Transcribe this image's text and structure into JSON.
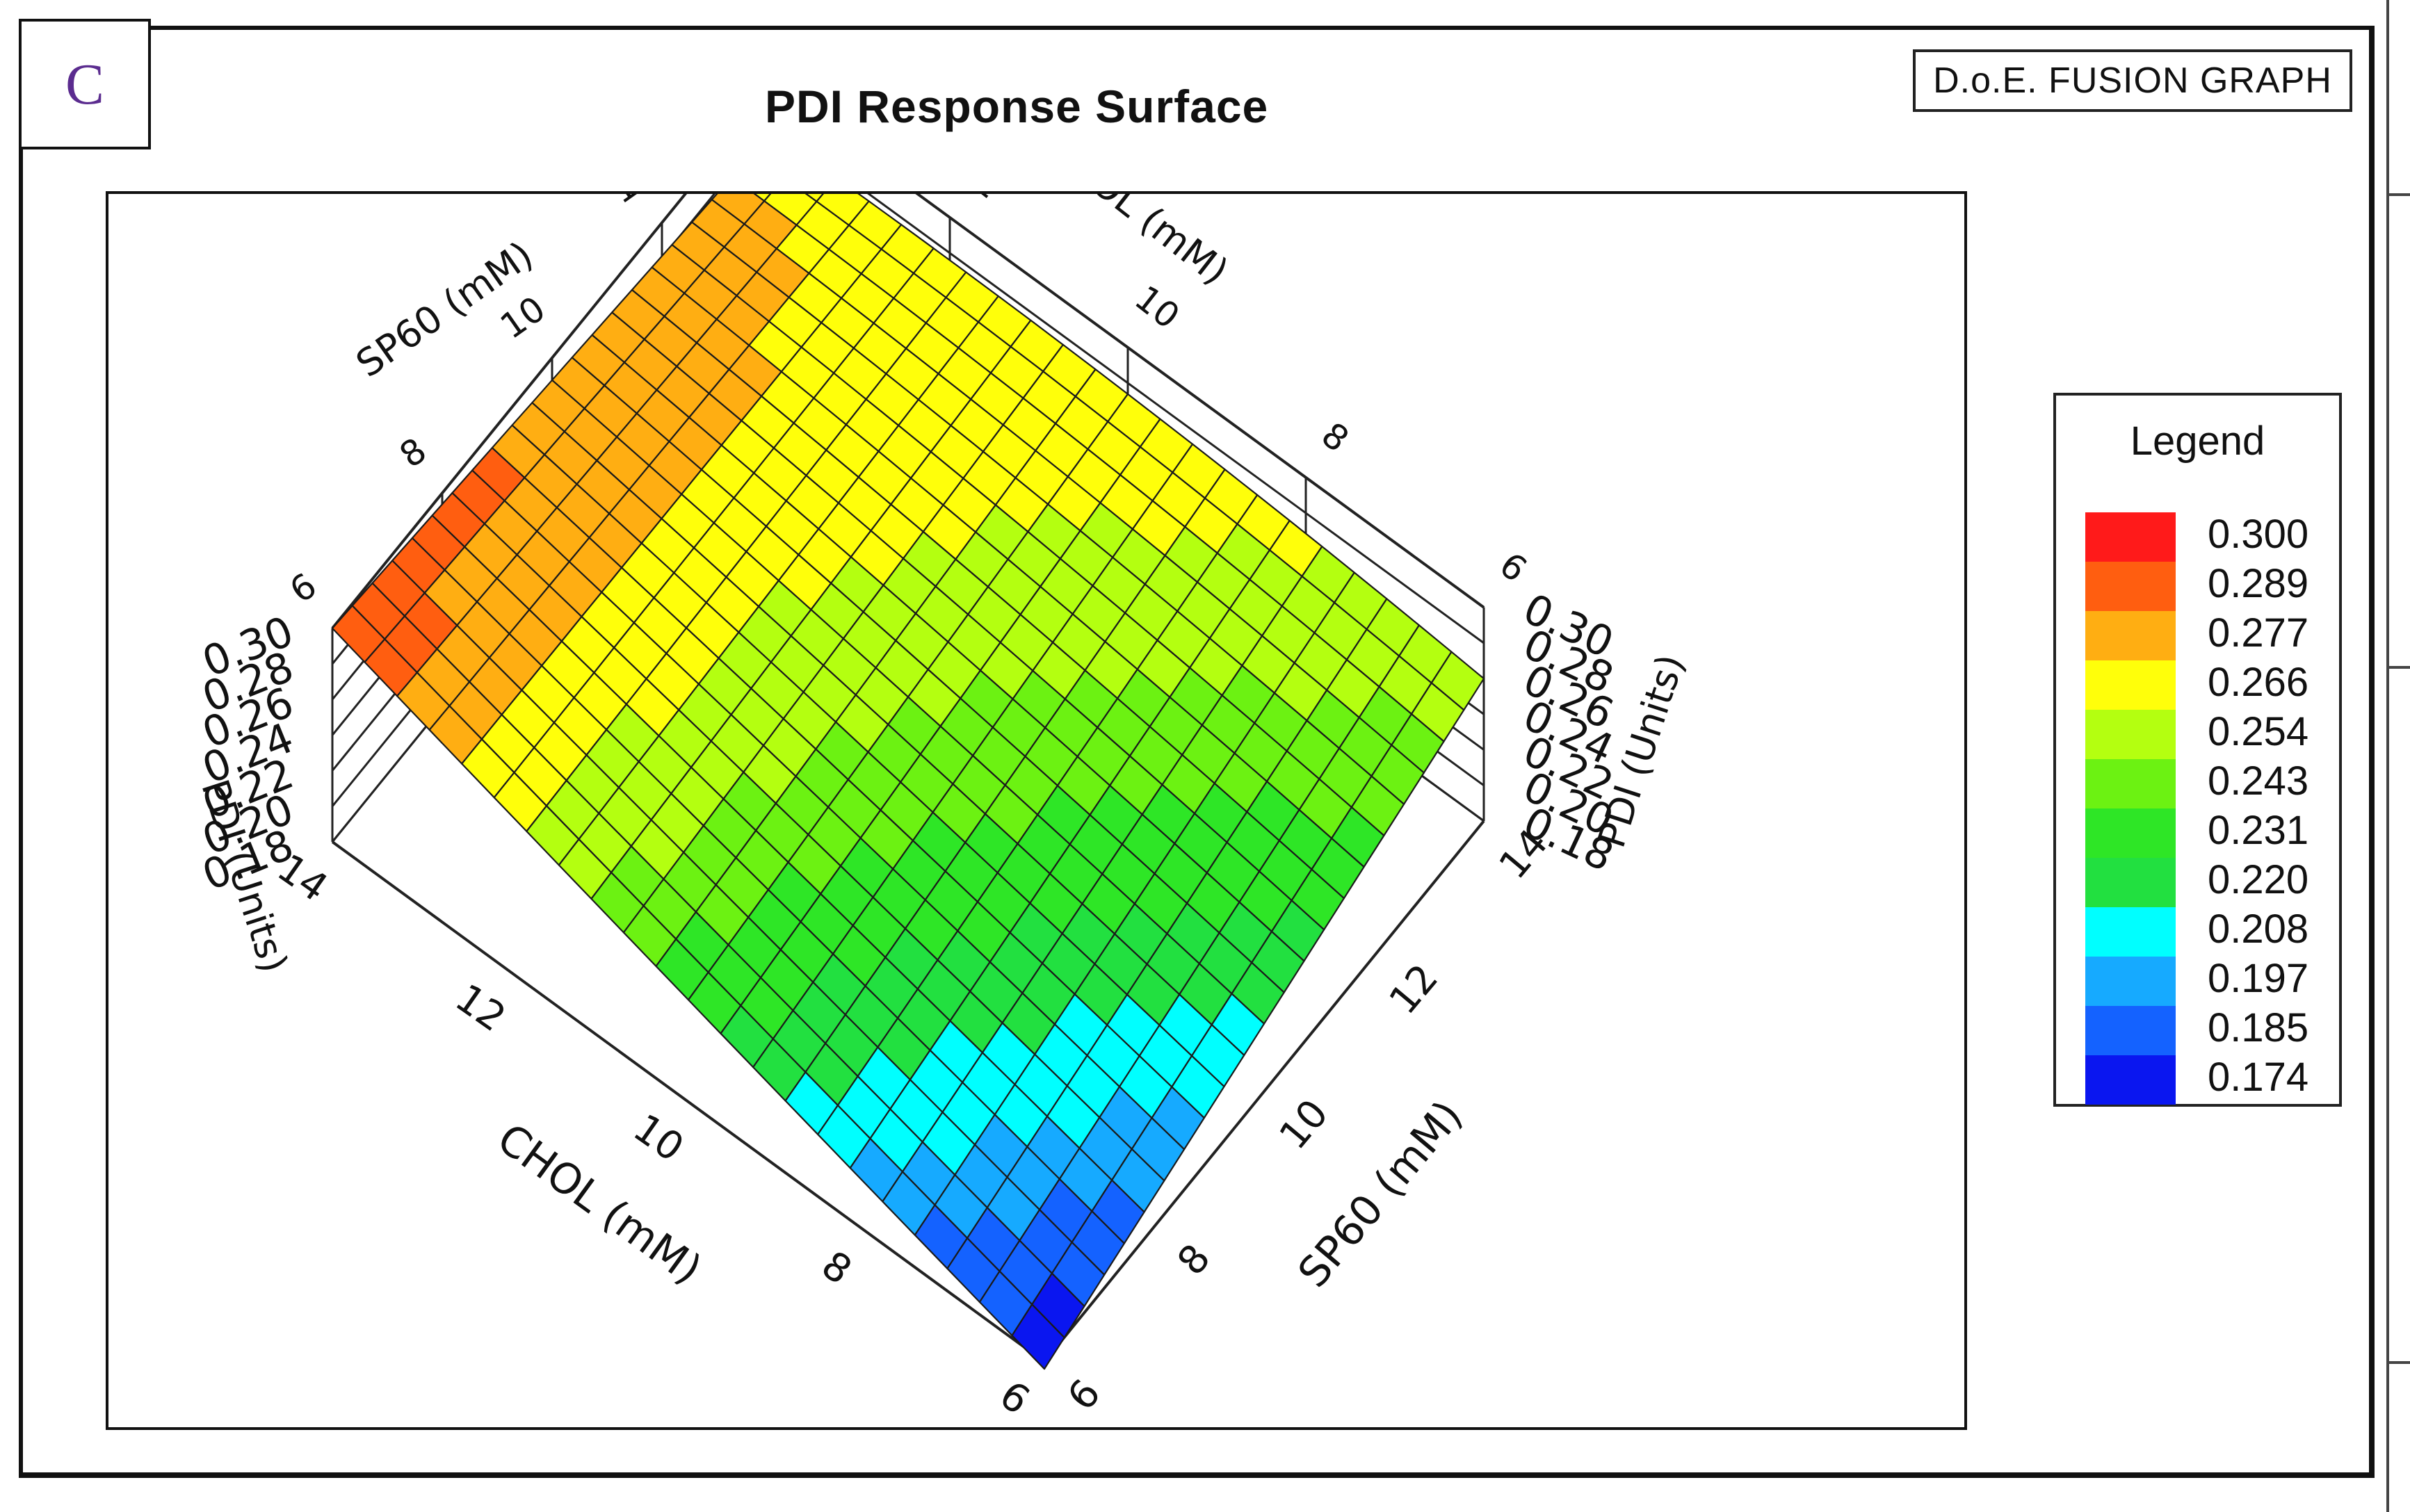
{
  "panel_label": "C",
  "brand_label": "D.o.E. FUSION GRAPH",
  "legend": {
    "title": "Legend",
    "entries": [
      {
        "label": "0.300",
        "color": "#ff1a1a"
      },
      {
        "label": "0.289",
        "color": "#ff5e10"
      },
      {
        "label": "0.277",
        "color": "#ffae12"
      },
      {
        "label": "0.266",
        "color": "#ffff0a"
      },
      {
        "label": "0.254",
        "color": "#b4ff10"
      },
      {
        "label": "0.243",
        "color": "#6cf212"
      },
      {
        "label": "0.231",
        "color": "#2ee626"
      },
      {
        "label": "0.220",
        "color": "#22e040"
      },
      {
        "label": "0.208",
        "color": "#00ffff"
      },
      {
        "label": "0.197",
        "color": "#16aaff"
      },
      {
        "label": "0.185",
        "color": "#1462ff"
      },
      {
        "label": "0.174",
        "color": "#0a16f0"
      }
    ]
  },
  "chart_data": {
    "type": "surface3d",
    "title": "PDI Response Surface",
    "x": {
      "label": "CHOL (mM)",
      "ticks": [
        "6",
        "8",
        "10",
        "12",
        "14"
      ],
      "range": [
        6,
        14
      ]
    },
    "y": {
      "label": "SP60 (mM)",
      "ticks": [
        "6",
        "8",
        "10",
        "12",
        "14"
      ],
      "range": [
        6,
        14
      ]
    },
    "z": {
      "label": "PDI (Units)",
      "ticks": [
        "0.18",
        "0.20",
        "0.22",
        "0.24",
        "0.26",
        "0.28",
        "0.30"
      ],
      "range": [
        0.18,
        0.3
      ]
    },
    "corner_values": [
      {
        "CHOL": 6,
        "SP60": 6,
        "PDI": 0.176
      },
      {
        "CHOL": 14,
        "SP60": 6,
        "PDI": 0.3
      },
      {
        "CHOL": 6,
        "SP60": 14,
        "PDI": 0.26
      },
      {
        "CHOL": 14,
        "SP60": 14,
        "PDI": 0.275
      }
    ],
    "legend_placement": "right"
  }
}
